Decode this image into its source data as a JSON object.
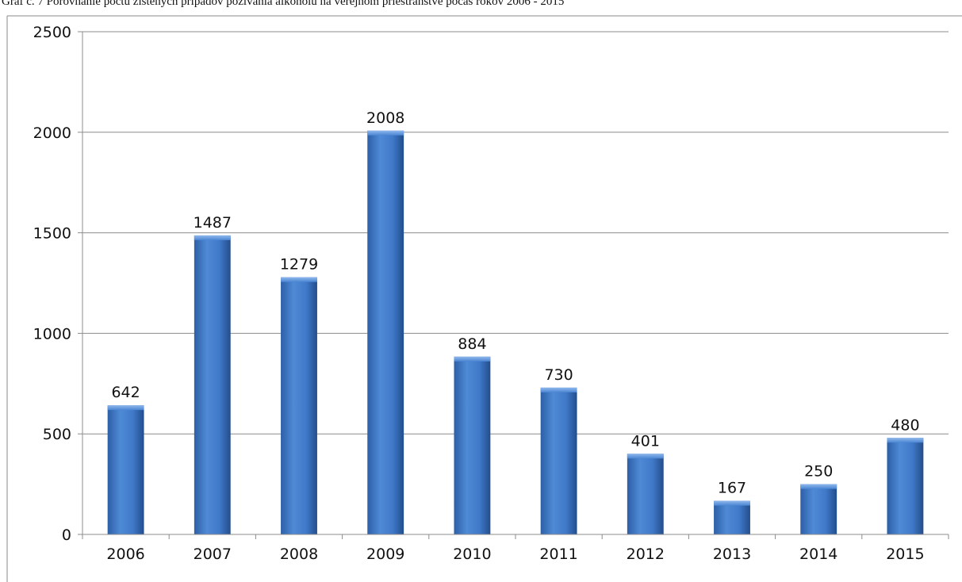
{
  "caption": "Graf č. 7 Porovnanie počtu zistených prípadov požívania alkoholu na verejnom priestranstve počas rokov 2006 - 2015",
  "chart_data": {
    "type": "bar",
    "title": "",
    "xlabel": "",
    "ylabel": "",
    "categories": [
      "2006",
      "2007",
      "2008",
      "2009",
      "2010",
      "2011",
      "2012",
      "2013",
      "2014",
      "2015"
    ],
    "values": [
      642,
      1487,
      1279,
      2008,
      884,
      730,
      401,
      167,
      250,
      480
    ],
    "ylim": [
      0,
      2500
    ],
    "yticks": [
      0,
      500,
      1000,
      1500,
      2000,
      2500
    ],
    "grid": true,
    "legend": "none",
    "data_labels": true,
    "bar_color": "#3f79c8"
  }
}
